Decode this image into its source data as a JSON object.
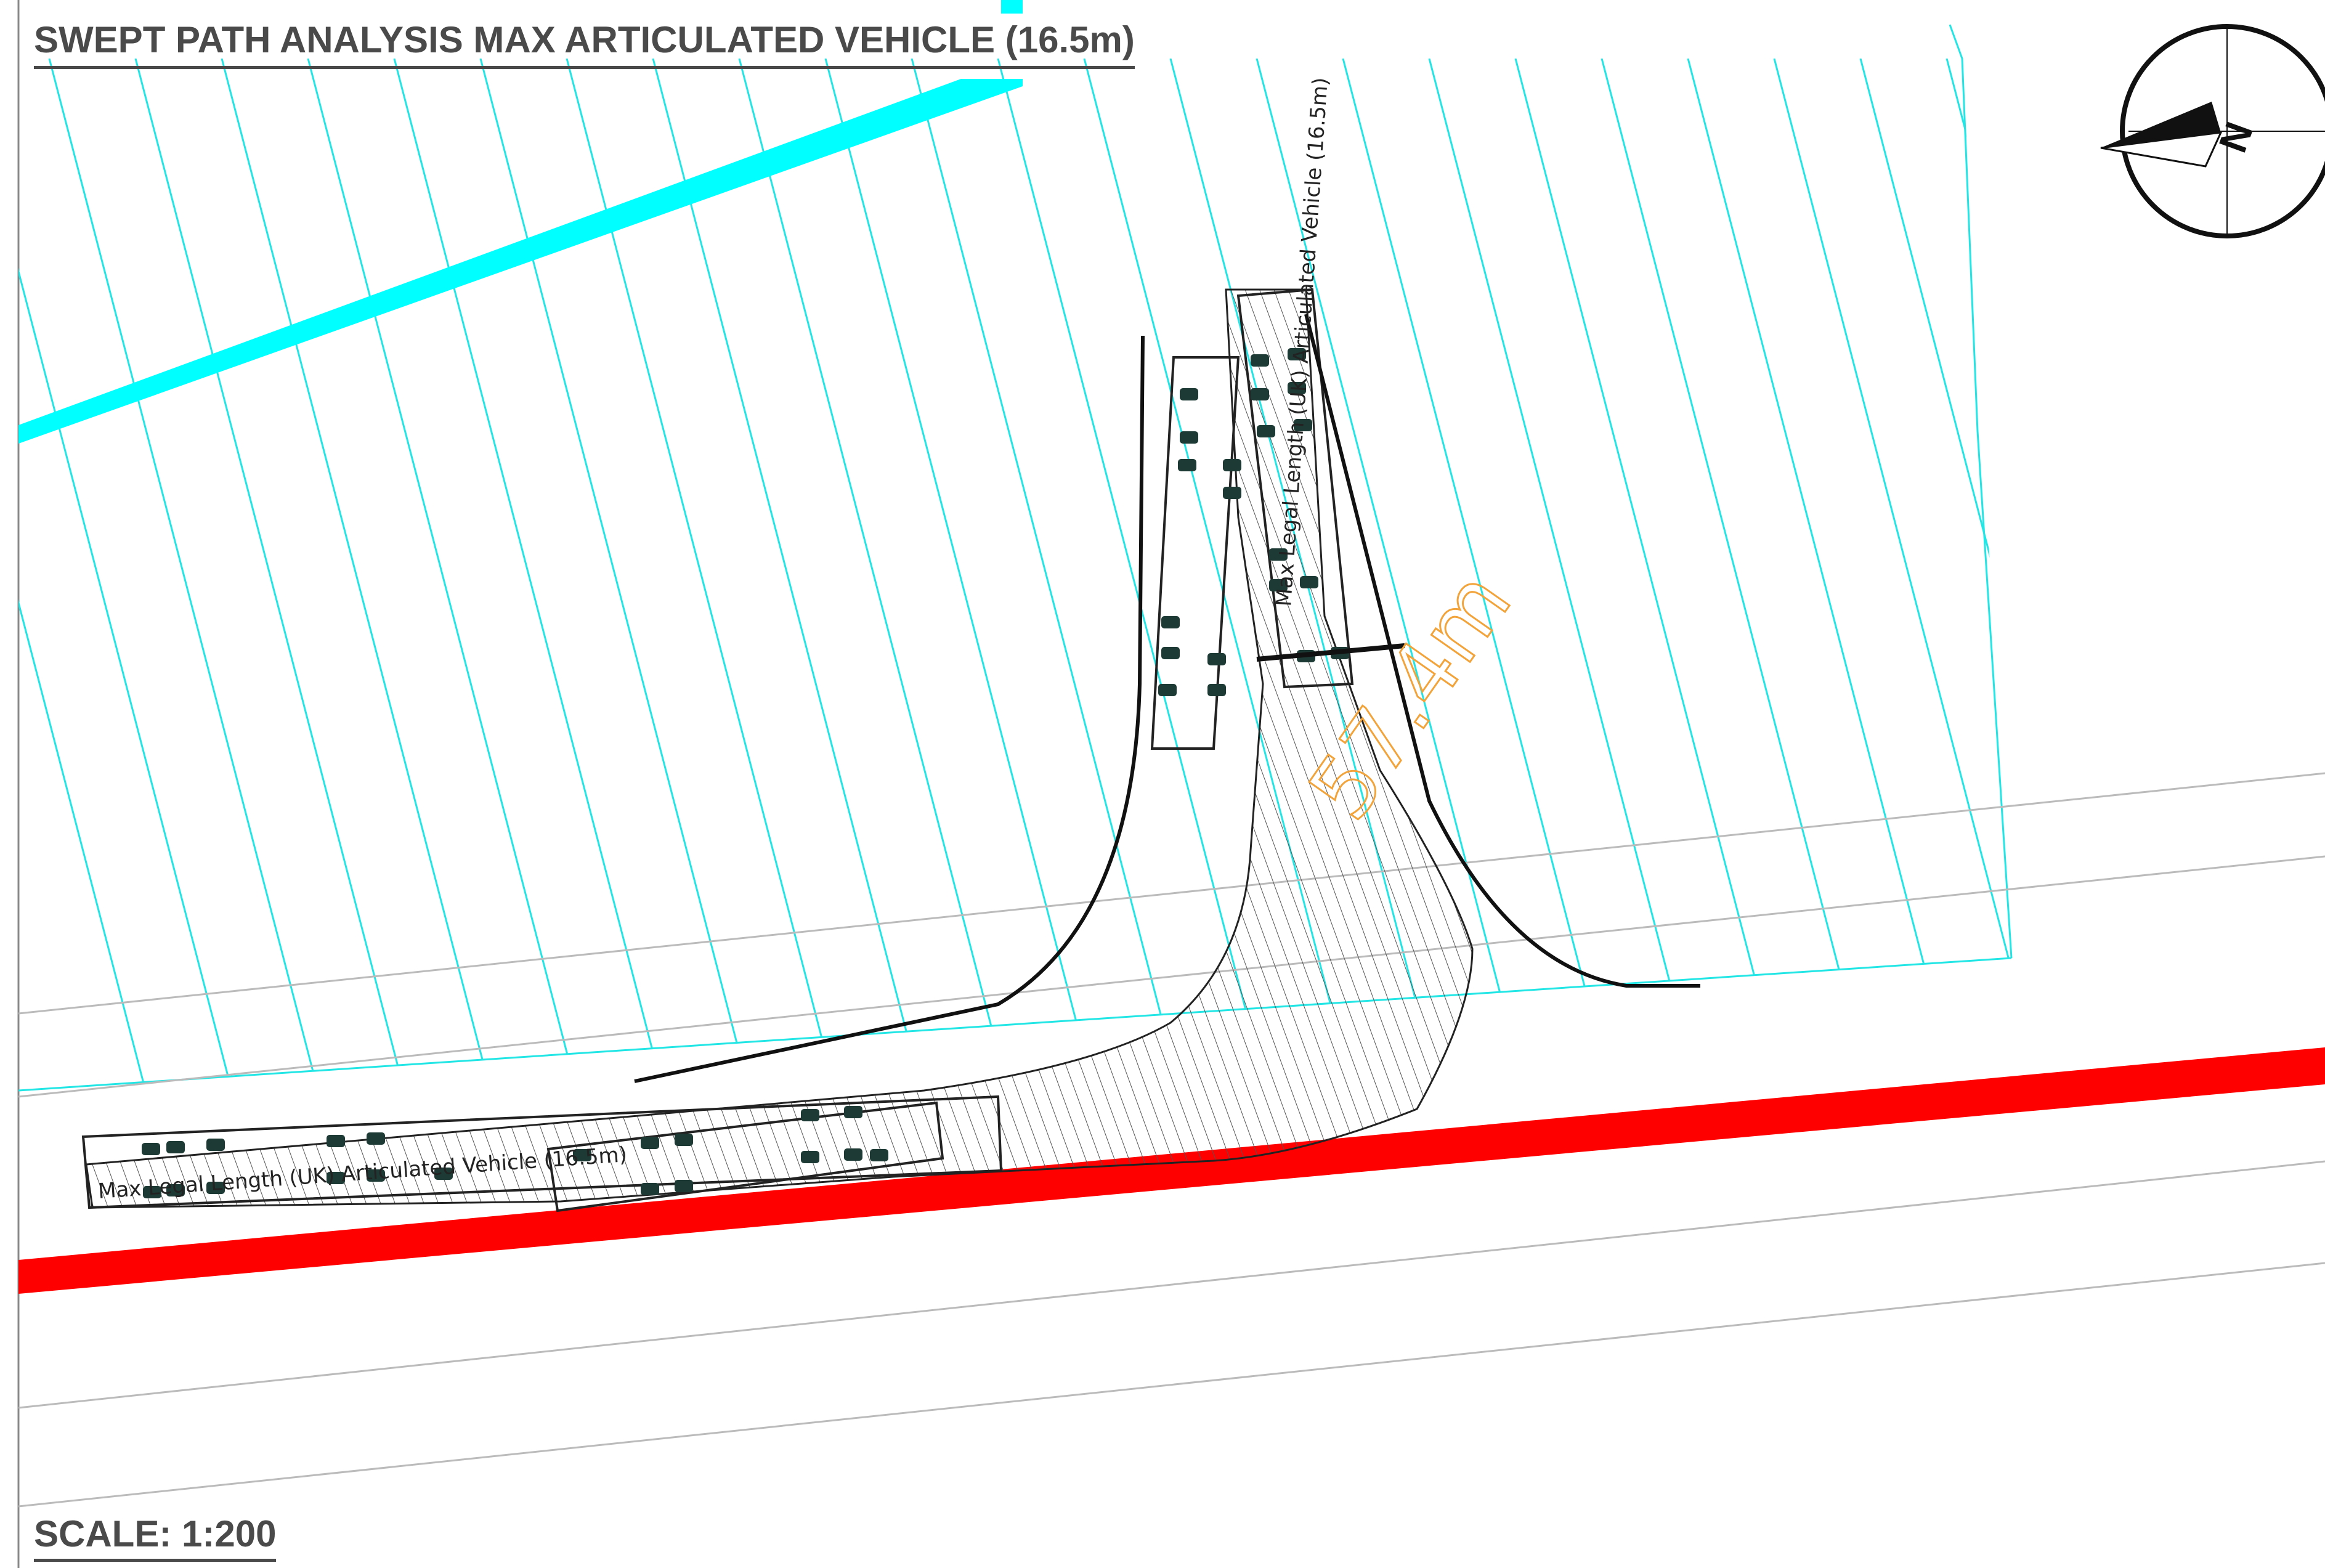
{
  "title": "SWEPT PATH ANALYSIS MAX ARTICULATED VEHICLE (16.5m)",
  "scale_text": "SCALE: 1:200",
  "north_label": "N",
  "dimension_label": "57.4m",
  "vehicle_label_1": "Max Legal Length (UK) Articulated Vehicle (16.5m)",
  "vehicle_label_2": "Max Legal Length (UK) Articulated Vehicle (16.5m)",
  "colors": {
    "hatch": "#22e5e5",
    "service_strip": "#00ffff",
    "boundary": "#ff0000",
    "linework": "#111111",
    "dimension": "#f2a33a",
    "title_text": "#4a4a4a",
    "wheels": "#1d3b34"
  }
}
